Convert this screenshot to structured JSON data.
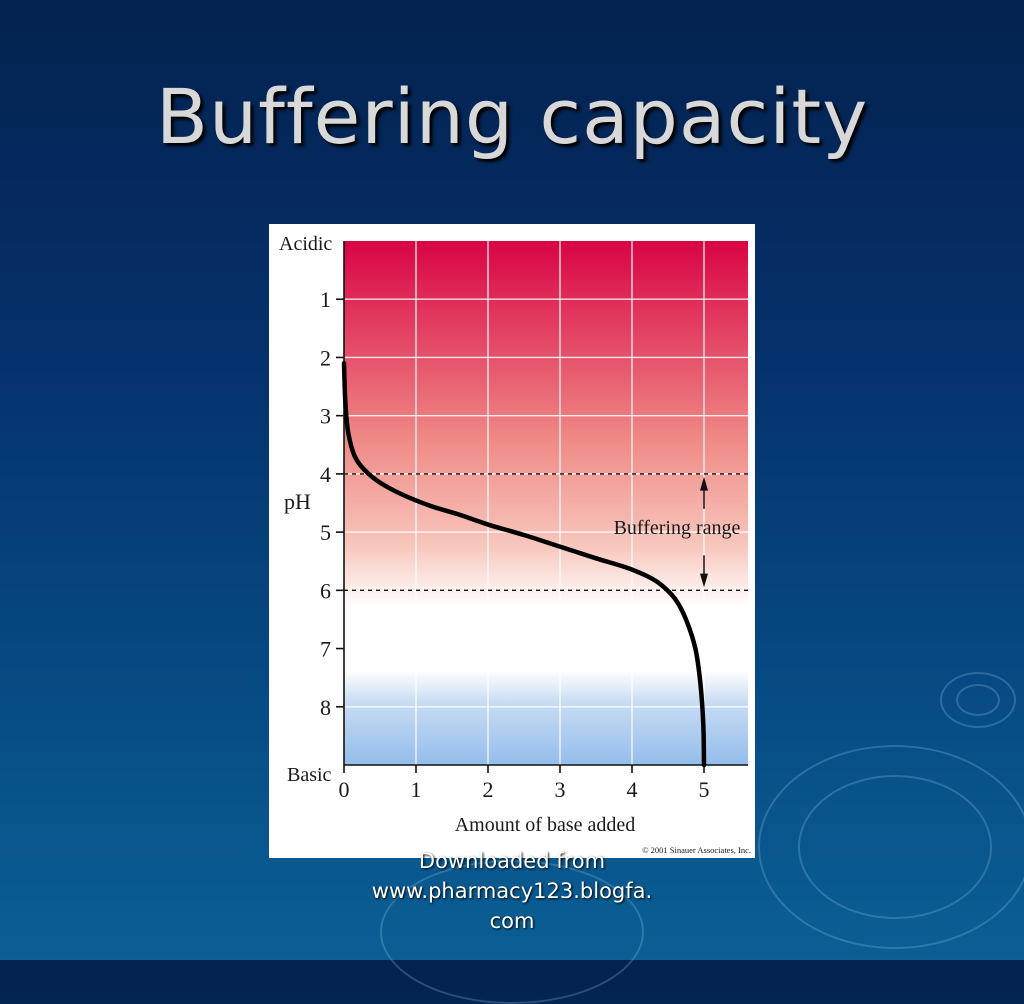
{
  "slide": {
    "title": "Buffering capacity",
    "footer": [
      "Downloaded from",
      "www.pharmacy123.blogfa.",
      "com"
    ]
  },
  "chart_data": {
    "type": "line",
    "xlabel": "Amount of base added",
    "ylabel": "pH",
    "xlim": [
      0,
      5.7
    ],
    "ylim": [
      0,
      9
    ],
    "x_ticks": [
      0,
      1,
      2,
      3,
      4,
      5
    ],
    "y_ticks": [
      1,
      2,
      3,
      4,
      5,
      6,
      7,
      8
    ],
    "y_end_labels": {
      "top": "Acidic",
      "bottom": "Basic"
    },
    "grid": true,
    "series": [
      {
        "x": [
          0,
          0.02,
          0.06,
          0.15,
          0.3,
          0.5,
          0.8,
          1.2,
          1.6,
          2.0,
          2.5,
          3.0,
          3.5,
          3.9,
          4.2,
          4.4,
          4.6,
          4.75,
          4.88,
          4.95,
          4.99,
          5.0
        ],
        "y": [
          2.1,
          2.8,
          3.3,
          3.7,
          3.95,
          4.15,
          4.35,
          4.55,
          4.7,
          4.87,
          5.05,
          5.25,
          5.45,
          5.6,
          5.75,
          5.9,
          6.15,
          6.5,
          7.0,
          7.6,
          8.3,
          9.0
        ],
        "color": "#000000"
      }
    ],
    "reference_lines": [
      4,
      6
    ],
    "annotation": "Buffering range",
    "copyright": "© 2001 Sinauer Associates, Inc.",
    "background_colors": {
      "acidic": "#d90445",
      "neutral": "#ffffff",
      "basic": "#93bdeb"
    }
  }
}
